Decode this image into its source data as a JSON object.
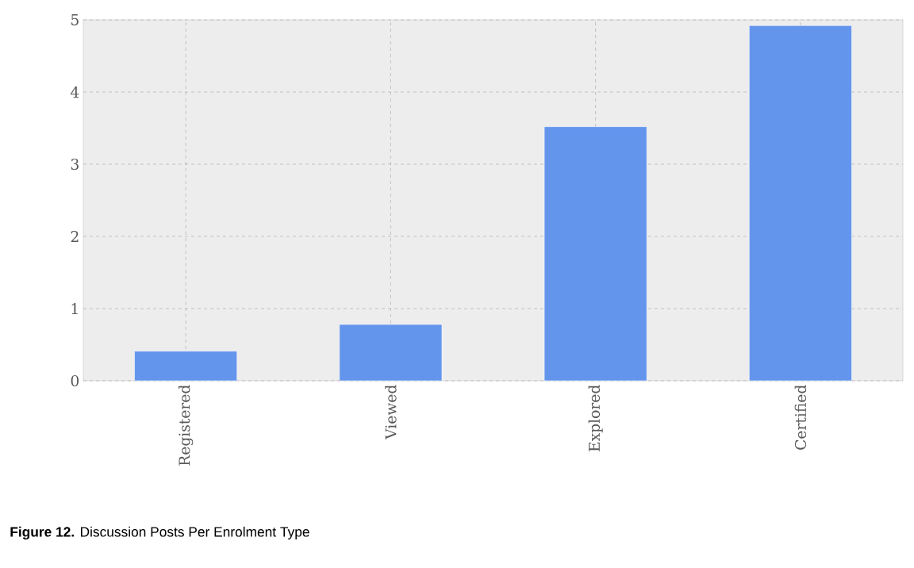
{
  "chart_data": {
    "type": "bar",
    "categories": [
      "Registered",
      "Viewed",
      "Explored",
      "Certified"
    ],
    "values": [
      0.41,
      0.78,
      3.52,
      4.92
    ],
    "color": "#6495ed",
    "ylim": [
      0,
      5
    ],
    "yticks": [
      0,
      1,
      2,
      3,
      4,
      5
    ],
    "grid": true,
    "annotations": [
      "**Figure 12.** Discussion Posts Per Enrolment Type"
    ]
  }
}
